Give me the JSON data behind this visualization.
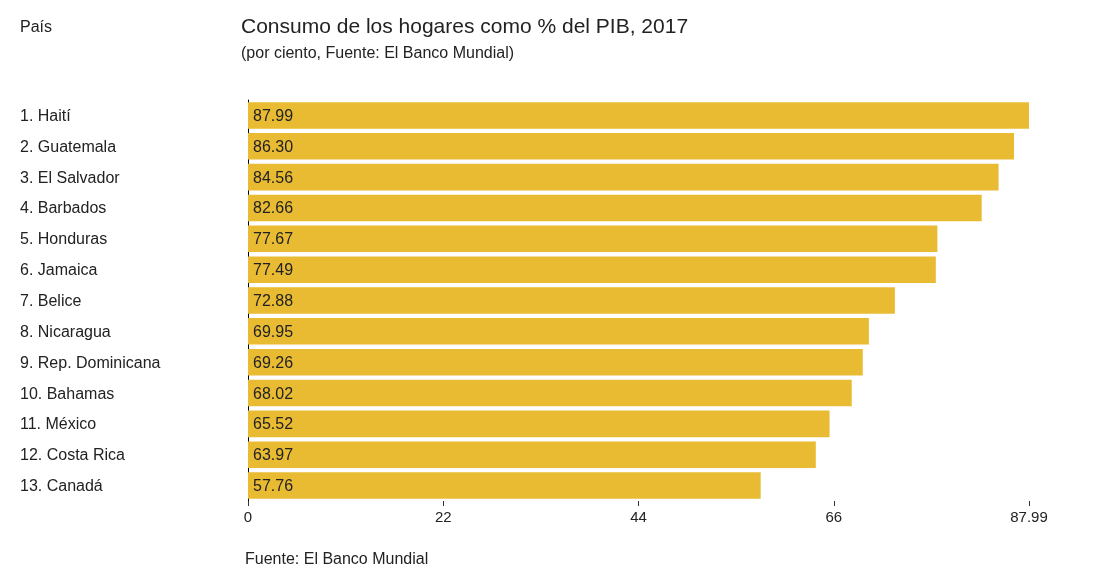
{
  "chart_data": {
    "type": "bar",
    "orientation": "horizontal",
    "title": "Consumo de los hogares como % del PIB, 2017",
    "subtitle": "(por ciento, Fuente: El Banco Mundial)",
    "ylabel": "País",
    "categories": [
      "1. Haití",
      "2. Guatemala",
      "3. El Salvador",
      "4. Barbados",
      "5. Honduras",
      "6. Jamaica",
      "7. Belice",
      "8. Nicaragua",
      "9. Rep. Dominicana",
      "10. Bahamas",
      "11. México",
      "12. Costa Rica",
      "13. Canadá"
    ],
    "values": [
      87.99,
      86.3,
      84.56,
      82.66,
      77.67,
      77.49,
      72.88,
      69.95,
      69.26,
      68.02,
      65.52,
      63.97,
      57.76
    ],
    "value_labels": [
      "87.99",
      "86.30",
      "84.56",
      "82.66",
      "77.67",
      "77.49",
      "72.88",
      "69.95",
      "69.26",
      "68.02",
      "65.52",
      "63.97",
      "57.76"
    ],
    "color": "#e8bb33",
    "xlim": [
      0,
      87.99
    ],
    "xticks": [
      0,
      22,
      44,
      66,
      87.99
    ],
    "grid": false,
    "annotations": [
      "Fuente: El Banco Mundial"
    ]
  }
}
